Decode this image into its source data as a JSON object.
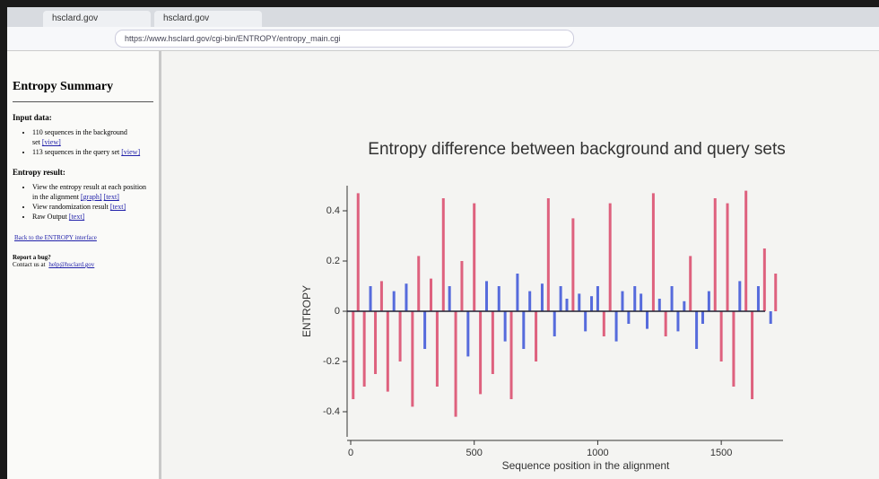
{
  "browser": {
    "tabs": [
      "hsclard.gov",
      "hsclard.gov"
    ],
    "url": "https://www.hsclard.gov/cgi-bin/ENTROPY/entropy_main.cgi"
  },
  "sidebar": {
    "title": "Entropy Summary",
    "input_heading": "Input data:",
    "input_items": [
      {
        "text": "110 sequences in the background set",
        "links": [
          "[view]"
        ]
      },
      {
        "text": "113 sequences in the query set",
        "links": [
          "[view]"
        ]
      }
    ],
    "result_heading": "Entropy result:",
    "result_items": [
      {
        "text": "View the entropy result at each position in the alignment",
        "links": [
          "[graph]",
          "[text]"
        ]
      },
      {
        "text": "View randomization result",
        "links": [
          "[text]"
        ]
      },
      {
        "text": "Raw Output",
        "links": [
          "[text]"
        ]
      }
    ],
    "back_link": "Back to the ENTROPY interface",
    "bug_heading": "Report a bug?",
    "contact_text": "Contact us at",
    "contact_link": "help@hsclard.gov"
  },
  "chart_data": {
    "type": "bar",
    "title": "Entropy difference between background and query sets",
    "x_label": "Sequence position in the alignment",
    "y_label": "ENTROPY",
    "x": [
      10,
      30,
      55,
      80,
      100,
      125,
      150,
      175,
      200,
      225,
      250,
      275,
      300,
      325,
      350,
      375,
      400,
      425,
      450,
      475,
      500,
      525,
      550,
      575,
      600,
      625,
      650,
      675,
      700,
      725,
      750,
      775,
      800,
      825,
      850,
      875,
      900,
      925,
      950,
      975,
      1000,
      1025,
      1050,
      1075,
      1100,
      1125,
      1150,
      1175,
      1200,
      1225,
      1250,
      1275,
      1300,
      1325,
      1350,
      1375,
      1400,
      1425,
      1450,
      1475,
      1500,
      1525,
      1550,
      1575,
      1600,
      1625,
      1650,
      1675,
      1700,
      1720
    ],
    "values": [
      -0.35,
      0.47,
      -0.3,
      0.1,
      -0.25,
      0.12,
      -0.32,
      0.08,
      -0.2,
      0.11,
      -0.38,
      0.22,
      -0.15,
      0.13,
      -0.3,
      0.45,
      0.1,
      -0.42,
      0.2,
      -0.18,
      0.43,
      -0.33,
      0.12,
      -0.25,
      0.1,
      -0.12,
      -0.35,
      0.15,
      -0.15,
      0.08,
      -0.2,
      0.11,
      0.45,
      -0.1,
      0.1,
      0.05,
      0.37,
      0.07,
      -0.08,
      0.06,
      0.1,
      -0.1,
      0.43,
      -0.12,
      0.08,
      -0.05,
      0.1,
      0.07,
      -0.07,
      0.47,
      0.05,
      -0.1,
      0.1,
      -0.08,
      0.04,
      0.22,
      -0.15,
      -0.05,
      0.08,
      0.45,
      -0.2,
      0.43,
      -0.3,
      0.12,
      0.48,
      -0.35,
      0.1,
      0.25,
      -0.05,
      0.15
    ],
    "colors": [
      "#d9466a",
      "#d9466a",
      "#d9466a",
      "#3a52d8",
      "#d9466a",
      "#d9466a",
      "#d9466a",
      "#3a52d8",
      "#d9466a",
      "#3a52d8",
      "#d9466a",
      "#d9466a",
      "#3a52d8",
      "#d9466a",
      "#d9466a",
      "#d9466a",
      "#3a52d8",
      "#d9466a",
      "#d9466a",
      "#3a52d8",
      "#d9466a",
      "#d9466a",
      "#3a52d8",
      "#d9466a",
      "#3a52d8",
      "#3a52d8",
      "#d9466a",
      "#3a52d8",
      "#3a52d8",
      "#3a52d8",
      "#d9466a",
      "#3a52d8",
      "#d9466a",
      "#3a52d8",
      "#3a52d8",
      "#3a52d8",
      "#d9466a",
      "#3a52d8",
      "#3a52d8",
      "#3a52d8",
      "#3a52d8",
      "#d9466a",
      "#d9466a",
      "#3a52d8",
      "#3a52d8",
      "#3a52d8",
      "#3a52d8",
      "#3a52d8",
      "#3a52d8",
      "#d9466a",
      "#3a52d8",
      "#d9466a",
      "#3a52d8",
      "#3a52d8",
      "#3a52d8",
      "#d9466a",
      "#3a52d8",
      "#3a52d8",
      "#3a52d8",
      "#d9466a",
      "#d9466a",
      "#d9466a",
      "#d9466a",
      "#3a52d8",
      "#d9466a",
      "#d9466a",
      "#3a52d8",
      "#d9466a",
      "#3a52d8",
      "#d9466a"
    ],
    "xlim": [
      0,
      1750
    ],
    "xticks": [
      0,
      500,
      1000,
      1500
    ],
    "ylim": [
      -0.5,
      0.5
    ],
    "yticks": [
      -0.4,
      -0.2,
      0,
      0.2,
      0.4
    ]
  }
}
